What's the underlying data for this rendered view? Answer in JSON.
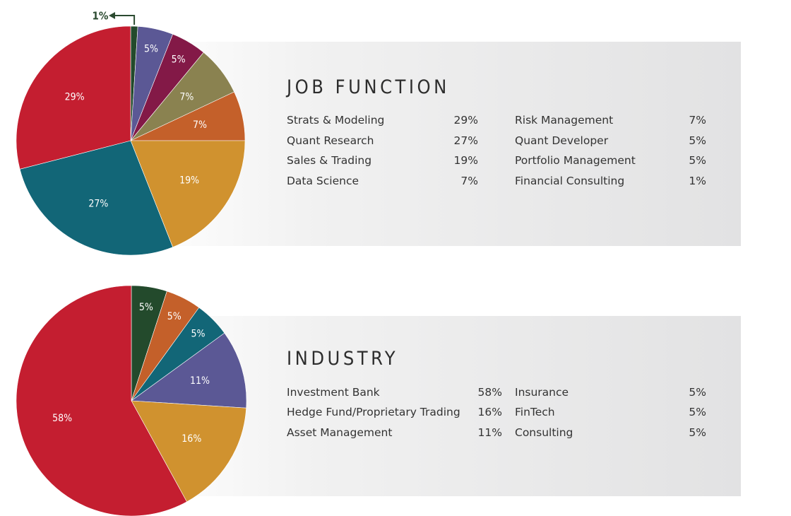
{
  "chart_data": [
    {
      "type": "pie",
      "title": "JOB FUNCTION",
      "slices": [
        {
          "label": "Financial Consulting",
          "value": 1,
          "display": "1%",
          "color": "#234a2c"
        },
        {
          "label": "Quant Developer",
          "value": 5,
          "display": "5%",
          "color": "#5b5895"
        },
        {
          "label": "Portfolio Management",
          "value": 5,
          "display": "5%",
          "color": "#831947"
        },
        {
          "label": "Risk Management",
          "value": 7,
          "display": "7%",
          "color": "#8a8250"
        },
        {
          "label": "Data Science",
          "value": 7,
          "display": "7%",
          "color": "#c4602a"
        },
        {
          "label": "Sales & Trading",
          "value": 19,
          "display": "19%",
          "color": "#d0922f"
        },
        {
          "label": "Quant Research",
          "value": 27,
          "display": "27%",
          "color": "#126677"
        },
        {
          "label": "Strats & Modeling",
          "value": 29,
          "display": "29%",
          "color": "#c41e30"
        }
      ],
      "legend_columns": [
        [
          {
            "label": "Strats & Modeling",
            "value": "29%"
          },
          {
            "label": "Quant Research",
            "value": "27%"
          },
          {
            "label": "Sales & Trading",
            "value": "19%"
          },
          {
            "label": "Data Science",
            "value": "7%"
          }
        ],
        [
          {
            "label": "Risk Management",
            "value": "7%"
          },
          {
            "label": "Quant Developer",
            "value": "5%"
          },
          {
            "label": "Portfolio Management",
            "value": "5%"
          },
          {
            "label": "Financial Consulting",
            "value": "1%"
          }
        ]
      ]
    },
    {
      "type": "pie",
      "title": "INDUSTRY",
      "slices": [
        {
          "label": "Insurance",
          "value": 5,
          "display": "5%",
          "color": "#234a2c"
        },
        {
          "label": "FinTech",
          "value": 5,
          "display": "5%",
          "color": "#c4602a"
        },
        {
          "label": "Consulting",
          "value": 5,
          "display": "5%",
          "color": "#126677"
        },
        {
          "label": "Asset Management",
          "value": 11,
          "display": "11%",
          "color": "#5b5895"
        },
        {
          "label": "Hedge Fund/Proprietary Trading",
          "value": 16,
          "display": "16%",
          "color": "#d0922f"
        },
        {
          "label": "Investment Bank",
          "value": 58,
          "display": "58%",
          "color": "#c41e30"
        }
      ],
      "legend_columns": [
        [
          {
            "label": "Investment Bank",
            "value": "58%"
          },
          {
            "label": "Hedge Fund/Proprietary Trading",
            "value": "16%"
          },
          {
            "label": "Asset Management",
            "value": "11%"
          }
        ],
        [
          {
            "label": "Insurance",
            "value": "5%"
          },
          {
            "label": "FinTech",
            "value": "5%"
          },
          {
            "label": "Consulting",
            "value": "5%"
          }
        ]
      ]
    }
  ],
  "callout_color": "#2b4a30"
}
